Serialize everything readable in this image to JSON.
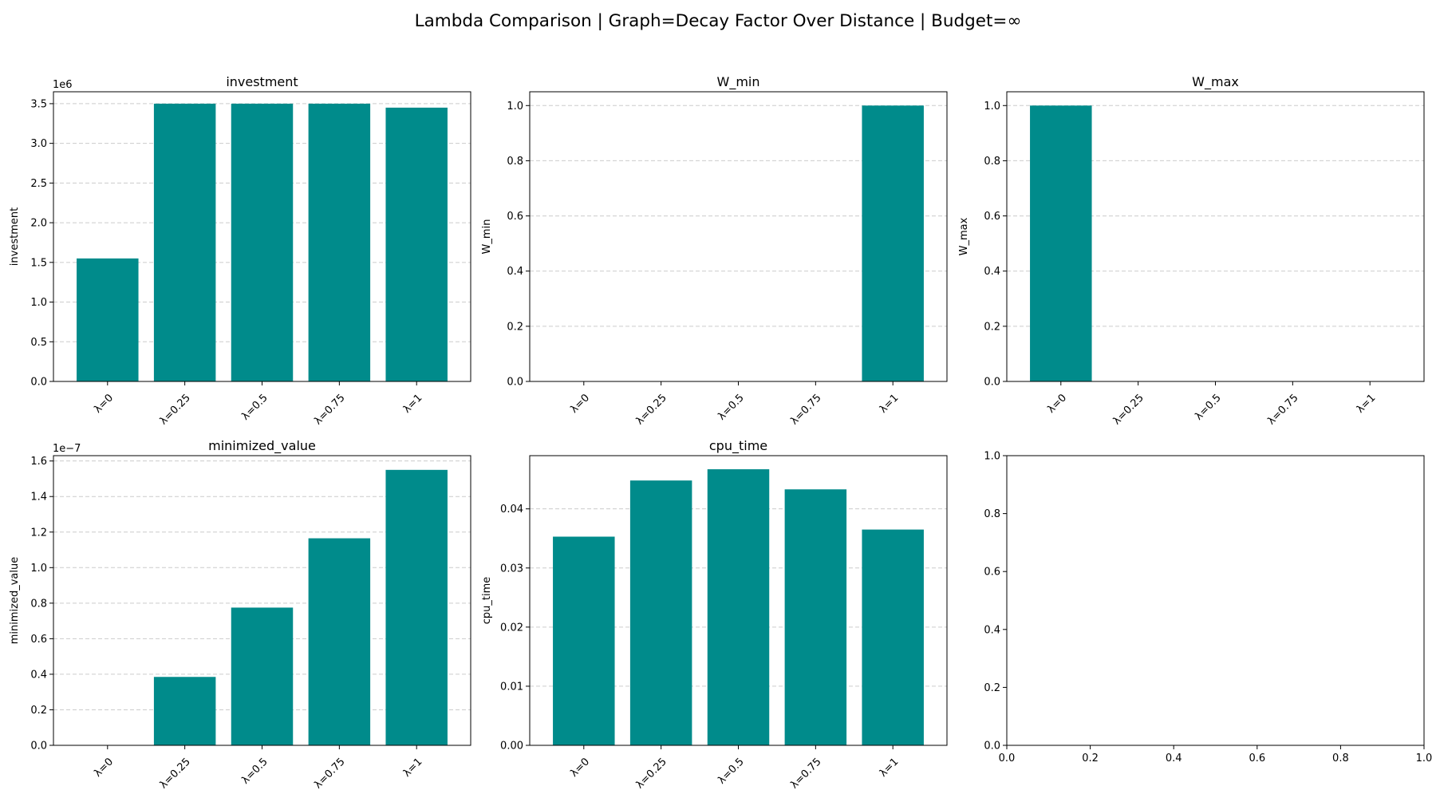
{
  "figure": {
    "title": "Lambda Comparison | Graph=Decay Factor Over Distance | Budget=∞",
    "bar_color": "#008b8b",
    "grid_color": "#cccccc"
  },
  "chart_data": [
    {
      "type": "bar",
      "title": "investment",
      "ylabel": "investment",
      "categories": [
        "λ=0",
        "λ=0.25",
        "λ=0.5",
        "λ=0.75",
        "λ=1"
      ],
      "values": [
        1550000,
        3500000,
        3500000,
        3500000,
        3450000
      ],
      "ylim": [
        0,
        3650000
      ],
      "yticks": [
        0,
        500000,
        1000000,
        1500000,
        2000000,
        2500000,
        3000000,
        3500000
      ],
      "ytick_labels": [
        "0.0",
        "0.5",
        "1.0",
        "1.5",
        "2.0",
        "2.5",
        "3.0",
        "3.5"
      ],
      "offset_label": "1e6",
      "grid": "y"
    },
    {
      "type": "bar",
      "title": "W_min",
      "ylabel": "W_min",
      "categories": [
        "λ=0",
        "λ=0.25",
        "λ=0.5",
        "λ=0.75",
        "λ=1"
      ],
      "values": [
        0,
        0,
        0,
        0,
        1.0
      ],
      "ylim": [
        0,
        1.05
      ],
      "yticks": [
        0,
        0.2,
        0.4,
        0.6,
        0.8,
        1.0
      ],
      "ytick_labels": [
        "0.0",
        "0.2",
        "0.4",
        "0.6",
        "0.8",
        "1.0"
      ],
      "offset_label": "",
      "grid": "y"
    },
    {
      "type": "bar",
      "title": "W_max",
      "ylabel": "W_max",
      "categories": [
        "λ=0",
        "λ=0.25",
        "λ=0.5",
        "λ=0.75",
        "λ=1"
      ],
      "values": [
        1.0,
        0,
        0,
        0,
        0
      ],
      "ylim": [
        0,
        1.05
      ],
      "yticks": [
        0,
        0.2,
        0.4,
        0.6,
        0.8,
        1.0
      ],
      "ytick_labels": [
        "0.0",
        "0.2",
        "0.4",
        "0.6",
        "0.8",
        "1.0"
      ],
      "offset_label": "",
      "grid": "y"
    },
    {
      "type": "bar",
      "title": "minimized_value",
      "ylabel": "minimized_value",
      "categories": [
        "λ=0",
        "λ=0.25",
        "λ=0.5",
        "λ=0.75",
        "λ=1"
      ],
      "values": [
        0,
        3.85e-08,
        7.75e-08,
        1.165e-07,
        1.55e-07
      ],
      "ylim": [
        0,
        1.63e-07
      ],
      "yticks": [
        0,
        2e-08,
        4e-08,
        6e-08,
        8e-08,
        1e-07,
        1.2e-07,
        1.4e-07,
        1.6e-07
      ],
      "ytick_labels": [
        "0.0",
        "0.2",
        "0.4",
        "0.6",
        "0.8",
        "1.0",
        "1.2",
        "1.4",
        "1.6"
      ],
      "offset_label": "1e−7",
      "grid": "y"
    },
    {
      "type": "bar",
      "title": "cpu_time",
      "ylabel": "cpu_time",
      "categories": [
        "λ=0",
        "λ=0.25",
        "λ=0.5",
        "λ=0.75",
        "λ=1"
      ],
      "values": [
        0.0353,
        0.0448,
        0.0467,
        0.0433,
        0.0365
      ],
      "ylim": [
        0,
        0.049
      ],
      "yticks": [
        0,
        0.01,
        0.02,
        0.03,
        0.04
      ],
      "ytick_labels": [
        "0.00",
        "0.01",
        "0.02",
        "0.03",
        "0.04"
      ],
      "offset_label": "",
      "grid": "y"
    },
    {
      "type": "empty",
      "title": "",
      "ylabel": "",
      "categories": [],
      "values": [],
      "xlim": [
        0,
        1
      ],
      "ylim": [
        0,
        1
      ],
      "xticks": [
        0,
        0.2,
        0.4,
        0.6,
        0.8,
        1.0
      ],
      "xtick_labels": [
        "0.0",
        "0.2",
        "0.4",
        "0.6",
        "0.8",
        "1.0"
      ],
      "yticks": [
        0,
        0.2,
        0.4,
        0.6,
        0.8,
        1.0
      ],
      "ytick_labels": [
        "0.0",
        "0.2",
        "0.4",
        "0.6",
        "0.8",
        "1.0"
      ],
      "offset_label": "",
      "grid": "none"
    }
  ]
}
